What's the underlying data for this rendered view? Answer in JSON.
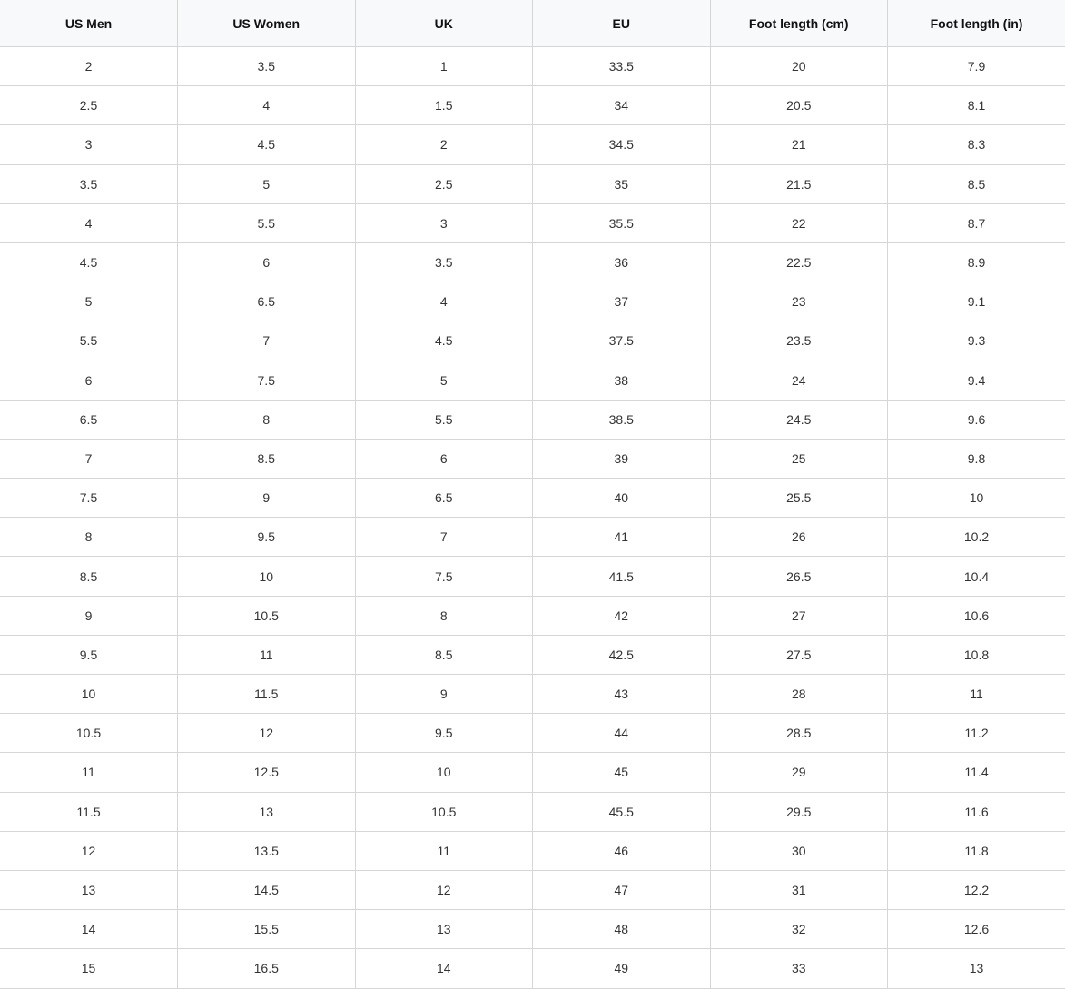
{
  "table": {
    "headers": [
      "US Men",
      "US Women",
      "UK",
      "EU",
      "Foot length (cm)",
      "Foot length (in)"
    ],
    "rows": [
      [
        "2",
        "3.5",
        "1",
        "33.5",
        "20",
        "7.9"
      ],
      [
        "2.5",
        "4",
        "1.5",
        "34",
        "20.5",
        "8.1"
      ],
      [
        "3",
        "4.5",
        "2",
        "34.5",
        "21",
        "8.3"
      ],
      [
        "3.5",
        "5",
        "2.5",
        "35",
        "21.5",
        "8.5"
      ],
      [
        "4",
        "5.5",
        "3",
        "35.5",
        "22",
        "8.7"
      ],
      [
        "4.5",
        "6",
        "3.5",
        "36",
        "22.5",
        "8.9"
      ],
      [
        "5",
        "6.5",
        "4",
        "37",
        "23",
        "9.1"
      ],
      [
        "5.5",
        "7",
        "4.5",
        "37.5",
        "23.5",
        "9.3"
      ],
      [
        "6",
        "7.5",
        "5",
        "38",
        "24",
        "9.4"
      ],
      [
        "6.5",
        "8",
        "5.5",
        "38.5",
        "24.5",
        "9.6"
      ],
      [
        "7",
        "8.5",
        "6",
        "39",
        "25",
        "9.8"
      ],
      [
        "7.5",
        "9",
        "6.5",
        "40",
        "25.5",
        "10"
      ],
      [
        "8",
        "9.5",
        "7",
        "41",
        "26",
        "10.2"
      ],
      [
        "8.5",
        "10",
        "7.5",
        "41.5",
        "26.5",
        "10.4"
      ],
      [
        "9",
        "10.5",
        "8",
        "42",
        "27",
        "10.6"
      ],
      [
        "9.5",
        "11",
        "8.5",
        "42.5",
        "27.5",
        "10.8"
      ],
      [
        "10",
        "11.5",
        "9",
        "43",
        "28",
        "11"
      ],
      [
        "10.5",
        "12",
        "9.5",
        "44",
        "28.5",
        "11.2"
      ],
      [
        "11",
        "12.5",
        "10",
        "45",
        "29",
        "11.4"
      ],
      [
        "11.5",
        "13",
        "10.5",
        "45.5",
        "29.5",
        "11.6"
      ],
      [
        "12",
        "13.5",
        "11",
        "46",
        "30",
        "11.8"
      ],
      [
        "13",
        "14.5",
        "12",
        "47",
        "31",
        "12.2"
      ],
      [
        "14",
        "15.5",
        "13",
        "48",
        "32",
        "12.6"
      ],
      [
        "15",
        "16.5",
        "14",
        "49",
        "33",
        "13"
      ]
    ]
  }
}
